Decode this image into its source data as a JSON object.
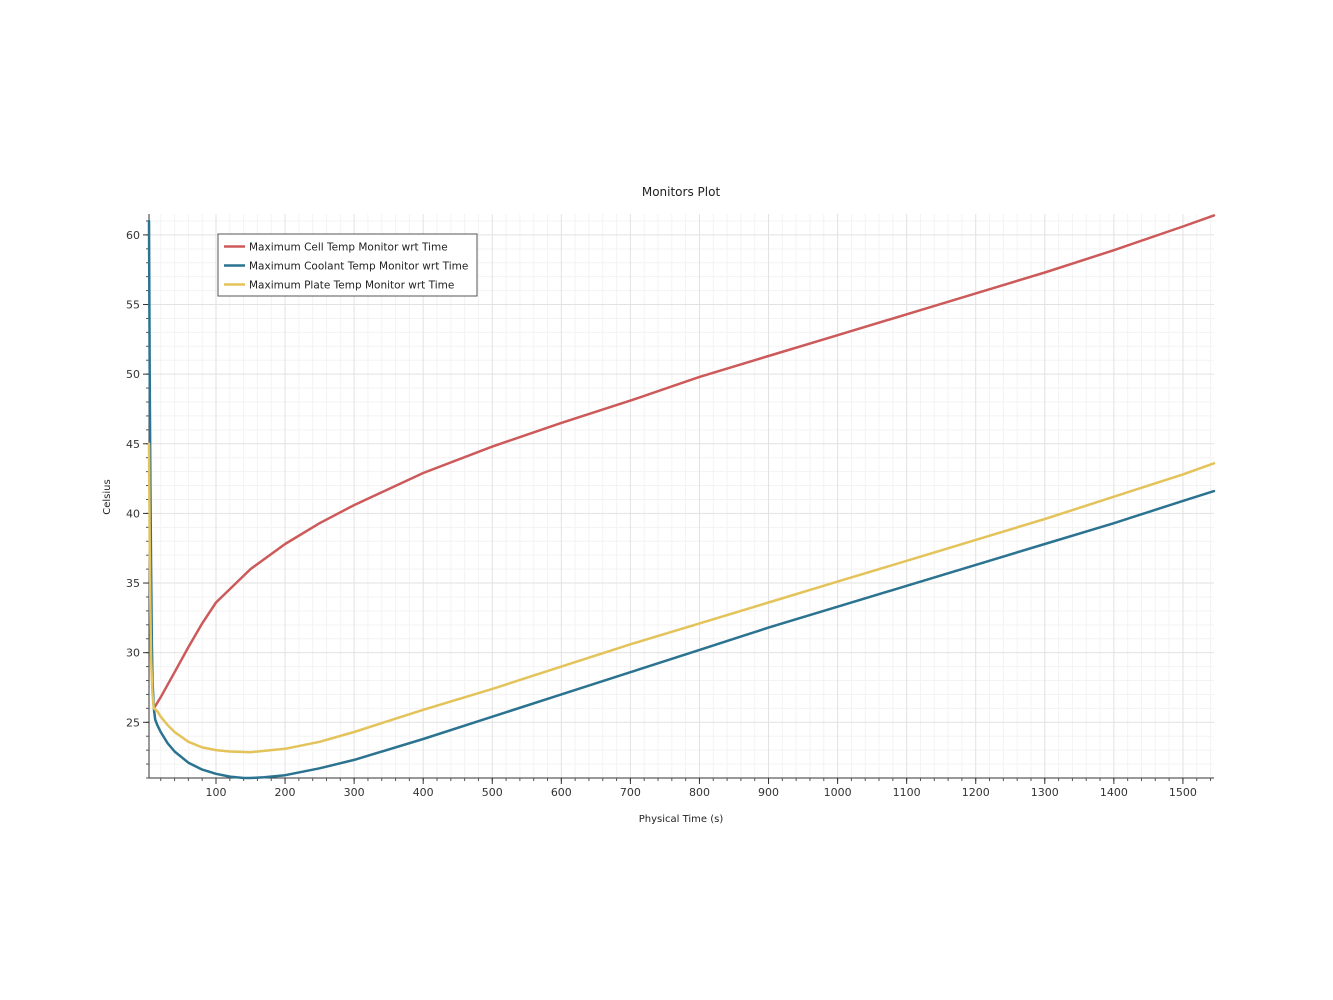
{
  "chart_data": {
    "type": "line",
    "title": "Monitors Plot",
    "xlabel": "Physical Time (s)",
    "ylabel": "Celsius",
    "xlim": [
      3,
      1545
    ],
    "ylim": [
      21,
      61.5
    ],
    "xticks": [
      100,
      200,
      300,
      400,
      500,
      600,
      700,
      800,
      900,
      1000,
      1100,
      1200,
      1300,
      1400,
      1500
    ],
    "yticks": [
      25,
      30,
      35,
      40,
      45,
      50,
      55,
      60
    ],
    "grid": true,
    "legend_position": "top-left",
    "series": [
      {
        "name": "Maximum Cell Temp Monitor wrt Time",
        "color": "#cd5a5a",
        "x": [
          10,
          20,
          40,
          60,
          80,
          100,
          150,
          200,
          250,
          300,
          400,
          500,
          600,
          700,
          800,
          900,
          1000,
          1100,
          1200,
          1300,
          1400,
          1500,
          1545
        ],
        "y": [
          26.0,
          26.8,
          28.6,
          30.4,
          32.1,
          33.6,
          36.0,
          37.8,
          39.3,
          40.6,
          42.9,
          44.8,
          46.5,
          48.1,
          49.8,
          51.3,
          52.8,
          54.3,
          55.8,
          57.3,
          58.9,
          60.6,
          61.4
        ]
      },
      {
        "name": "Maximum Coolant Temp Monitor wrt Time",
        "color": "#2b7390",
        "x": [
          3,
          4,
          5,
          6,
          7,
          8,
          10,
          12,
          15,
          20,
          30,
          40,
          60,
          80,
          100,
          120,
          140,
          150,
          170,
          200,
          250,
          300,
          400,
          500,
          600,
          700,
          800,
          900,
          1000,
          1100,
          1200,
          1300,
          1400,
          1500,
          1545
        ],
        "y": [
          61.0,
          50.0,
          42.0,
          36.0,
          31.0,
          28.0,
          26.0,
          25.2,
          24.8,
          24.3,
          23.5,
          22.9,
          22.1,
          21.6,
          21.3,
          21.1,
          21.0,
          21.0,
          21.05,
          21.2,
          21.7,
          22.3,
          23.8,
          25.4,
          27.0,
          28.6,
          30.2,
          31.8,
          33.3,
          34.8,
          36.3,
          37.8,
          39.3,
          40.9,
          41.6
        ]
      },
      {
        "name": "Maximum Plate Temp Monitor wrt Time",
        "color": "#e3c35a",
        "x": [
          3,
          4,
          5,
          6,
          8,
          10,
          15,
          20,
          30,
          40,
          60,
          80,
          100,
          120,
          150,
          200,
          250,
          300,
          400,
          500,
          600,
          700,
          800,
          900,
          1000,
          1100,
          1200,
          1300,
          1400,
          1500,
          1545
        ],
        "y": [
          45.0,
          38.0,
          33.0,
          29.5,
          27.0,
          26.0,
          25.8,
          25.4,
          24.8,
          24.3,
          23.6,
          23.2,
          23.0,
          22.9,
          22.85,
          23.1,
          23.6,
          24.3,
          25.9,
          27.4,
          29.0,
          30.6,
          32.1,
          33.6,
          35.1,
          36.6,
          38.1,
          39.6,
          41.2,
          42.8,
          43.6
        ]
      }
    ]
  }
}
